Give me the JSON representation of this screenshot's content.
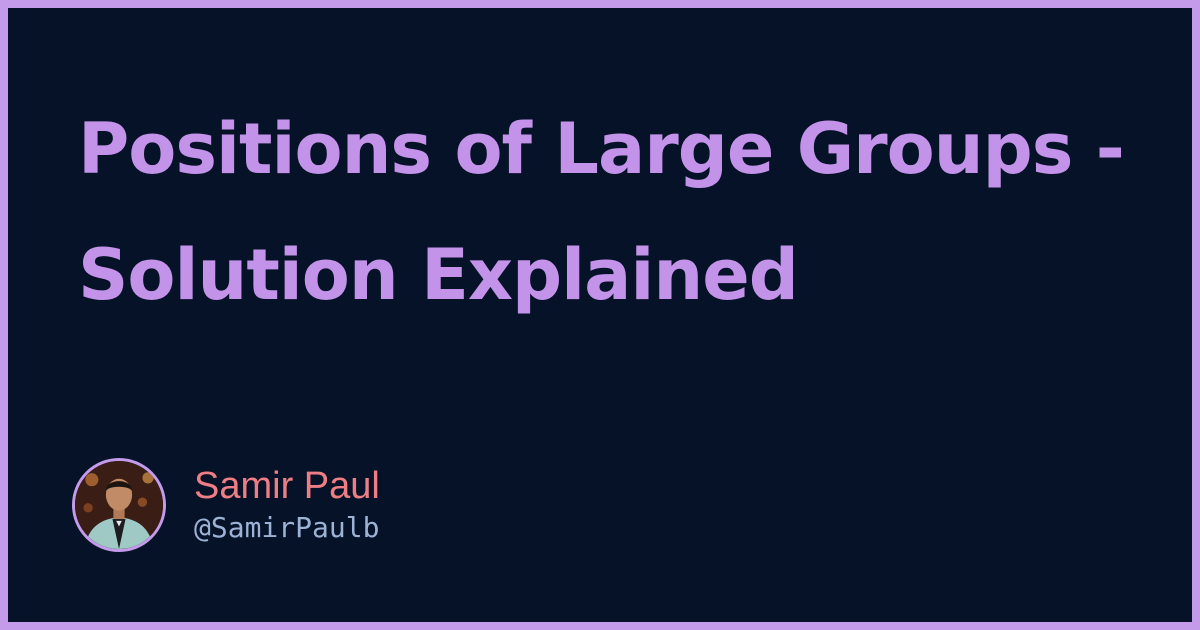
{
  "post": {
    "title": "Positions of Large Groups - Solution Explained"
  },
  "author": {
    "name": "Samir Paul",
    "handle": "@SamirPaulb"
  },
  "colors": {
    "background": "#061227",
    "border": "#c39bea",
    "title": "#c393ea",
    "author_name": "#ef7e84",
    "author_handle": "#9cb3d6"
  }
}
